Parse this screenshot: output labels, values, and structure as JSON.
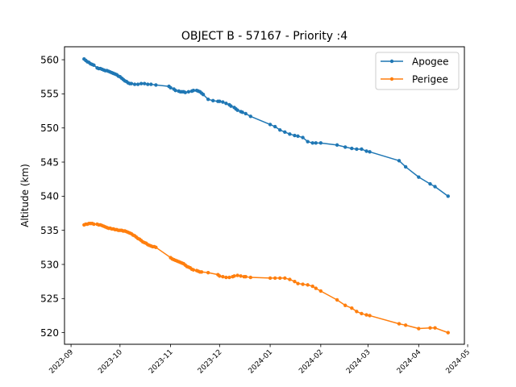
{
  "chart_data": {
    "type": "line",
    "title": "OBJECT B - 57167 - Priority :4",
    "xlabel": "",
    "ylabel": "Altitude (km)",
    "x_type": "date",
    "xlim": [
      "2023-08-28",
      "2024-04-29"
    ],
    "ylim": [
      518.3,
      561.9
    ],
    "y_ticks": [
      520,
      525,
      530,
      535,
      540,
      545,
      550,
      555,
      560
    ],
    "x_ticks": [
      "2023-09",
      "2023-10",
      "2023-11",
      "2023-12",
      "2024-01",
      "2024-02",
      "2024-03",
      "2024-04",
      "2024-05"
    ],
    "grid": false,
    "legend_position": "top-right",
    "series": [
      {
        "name": "Apogee",
        "color": "#1f77b4",
        "marker": "circle",
        "points": [
          [
            "2023-09-09",
            560.1
          ],
          [
            "2023-09-10",
            559.9
          ],
          [
            "2023-09-11",
            559.7
          ],
          [
            "2023-09-12",
            559.6
          ],
          [
            "2023-09-13",
            559.4
          ],
          [
            "2023-09-14",
            559.3
          ],
          [
            "2023-09-15",
            559.2
          ],
          [
            "2023-09-17",
            558.8
          ],
          [
            "2023-09-18",
            558.7
          ],
          [
            "2023-09-19",
            558.7
          ],
          [
            "2023-09-20",
            558.6
          ],
          [
            "2023-09-21",
            558.5
          ],
          [
            "2023-09-22",
            558.4
          ],
          [
            "2023-09-23",
            558.4
          ],
          [
            "2023-09-24",
            558.3
          ],
          [
            "2023-09-25",
            558.2
          ],
          [
            "2023-09-26",
            558.1
          ],
          [
            "2023-09-27",
            558.0
          ],
          [
            "2023-09-28",
            557.9
          ],
          [
            "2023-09-29",
            557.8
          ],
          [
            "2023-09-30",
            557.6
          ],
          [
            "2023-10-01",
            557.5
          ],
          [
            "2023-10-02",
            557.3
          ],
          [
            "2023-10-03",
            557.1
          ],
          [
            "2023-10-04",
            556.9
          ],
          [
            "2023-10-05",
            556.8
          ],
          [
            "2023-10-06",
            556.6
          ],
          [
            "2023-10-07",
            556.5
          ],
          [
            "2023-10-08",
            556.5
          ],
          [
            "2023-10-10",
            556.4
          ],
          [
            "2023-10-12",
            556.4
          ],
          [
            "2023-10-14",
            556.5
          ],
          [
            "2023-10-16",
            556.5
          ],
          [
            "2023-10-18",
            556.4
          ],
          [
            "2023-10-20",
            556.4
          ],
          [
            "2023-10-23",
            556.3
          ],
          [
            "2023-10-31",
            556.1
          ],
          [
            "2023-11-01",
            555.9
          ],
          [
            "2023-11-03",
            555.7
          ],
          [
            "2023-11-04",
            555.5
          ],
          [
            "2023-11-06",
            555.4
          ],
          [
            "2023-11-07",
            555.3
          ],
          [
            "2023-11-08",
            555.3
          ],
          [
            "2023-11-09",
            555.3
          ],
          [
            "2023-11-10",
            555.2
          ],
          [
            "2023-11-12",
            555.3
          ],
          [
            "2023-11-14",
            555.4
          ],
          [
            "2023-11-15",
            555.5
          ],
          [
            "2023-11-17",
            555.5
          ],
          [
            "2023-11-18",
            555.4
          ],
          [
            "2023-11-19",
            555.3
          ],
          [
            "2023-11-20",
            555.1
          ],
          [
            "2023-11-21",
            554.9
          ],
          [
            "2023-11-24",
            554.2
          ],
          [
            "2023-11-27",
            554.0
          ],
          [
            "2023-11-30",
            553.9
          ],
          [
            "2023-12-01",
            553.9
          ],
          [
            "2023-12-03",
            553.8
          ],
          [
            "2023-12-05",
            553.6
          ],
          [
            "2023-12-07",
            553.4
          ],
          [
            "2023-12-08",
            553.2
          ],
          [
            "2023-12-10",
            553.0
          ],
          [
            "2023-12-11",
            552.8
          ],
          [
            "2023-12-12",
            552.6
          ],
          [
            "2023-12-14",
            552.4
          ],
          [
            "2023-12-15",
            552.3
          ],
          [
            "2023-12-17",
            552.1
          ],
          [
            "2023-12-20",
            551.7
          ],
          [
            "2024-01-01",
            550.5
          ],
          [
            "2024-01-04",
            550.2
          ],
          [
            "2024-01-07",
            549.7
          ],
          [
            "2024-01-10",
            549.4
          ],
          [
            "2024-01-13",
            549.1
          ],
          [
            "2024-01-16",
            548.9
          ],
          [
            "2024-01-18",
            548.8
          ],
          [
            "2024-01-21",
            548.6
          ],
          [
            "2024-01-24",
            548.0
          ],
          [
            "2024-01-27",
            547.8
          ],
          [
            "2024-01-29",
            547.8
          ],
          [
            "2024-02-01",
            547.8
          ],
          [
            "2024-02-11",
            547.5
          ],
          [
            "2024-02-16",
            547.2
          ],
          [
            "2024-02-20",
            547.0
          ],
          [
            "2024-02-23",
            546.9
          ],
          [
            "2024-02-26",
            546.9
          ],
          [
            "2024-02-29",
            546.6
          ],
          [
            "2024-03-02",
            546.5
          ],
          [
            "2024-03-20",
            545.2
          ],
          [
            "2024-03-24",
            544.3
          ],
          [
            "2024-04-01",
            542.8
          ],
          [
            "2024-04-08",
            541.8
          ],
          [
            "2024-04-11",
            541.4
          ],
          [
            "2024-04-19",
            540.0
          ]
        ]
      },
      {
        "name": "Perigee",
        "color": "#ff7f0e",
        "marker": "circle",
        "points": [
          [
            "2023-09-09",
            535.8
          ],
          [
            "2023-09-10",
            535.9
          ],
          [
            "2023-09-11",
            535.9
          ],
          [
            "2023-09-12",
            536.0
          ],
          [
            "2023-09-13",
            536.0
          ],
          [
            "2023-09-14",
            536.0
          ],
          [
            "2023-09-15",
            535.9
          ],
          [
            "2023-09-17",
            535.9
          ],
          [
            "2023-09-18",
            535.8
          ],
          [
            "2023-09-19",
            535.8
          ],
          [
            "2023-09-20",
            535.7
          ],
          [
            "2023-09-21",
            535.6
          ],
          [
            "2023-09-22",
            535.5
          ],
          [
            "2023-09-23",
            535.4
          ],
          [
            "2023-09-24",
            535.3
          ],
          [
            "2023-09-25",
            535.3
          ],
          [
            "2023-09-26",
            535.2
          ],
          [
            "2023-09-27",
            535.2
          ],
          [
            "2023-09-28",
            535.1
          ],
          [
            "2023-09-29",
            535.1
          ],
          [
            "2023-09-30",
            535.0
          ],
          [
            "2023-10-01",
            535.0
          ],
          [
            "2023-10-02",
            535.0
          ],
          [
            "2023-10-03",
            534.9
          ],
          [
            "2023-10-04",
            534.9
          ],
          [
            "2023-10-05",
            534.8
          ],
          [
            "2023-10-06",
            534.7
          ],
          [
            "2023-10-07",
            534.6
          ],
          [
            "2023-10-08",
            534.5
          ],
          [
            "2023-10-09",
            534.3
          ],
          [
            "2023-10-10",
            534.2
          ],
          [
            "2023-10-11",
            534.0
          ],
          [
            "2023-10-12",
            533.8
          ],
          [
            "2023-10-13",
            533.7
          ],
          [
            "2023-10-14",
            533.5
          ],
          [
            "2023-10-15",
            533.3
          ],
          [
            "2023-10-16",
            533.2
          ],
          [
            "2023-10-17",
            533.1
          ],
          [
            "2023-10-18",
            532.9
          ],
          [
            "2023-10-19",
            532.8
          ],
          [
            "2023-10-20",
            532.7
          ],
          [
            "2023-10-21",
            532.6
          ],
          [
            "2023-10-22",
            532.6
          ],
          [
            "2023-10-23",
            532.5
          ],
          [
            "2023-11-01",
            531.0
          ],
          [
            "2023-11-02",
            530.8
          ],
          [
            "2023-11-03",
            530.7
          ],
          [
            "2023-11-04",
            530.6
          ],
          [
            "2023-11-05",
            530.5
          ],
          [
            "2023-11-06",
            530.4
          ],
          [
            "2023-11-07",
            530.3
          ],
          [
            "2023-11-08",
            530.2
          ],
          [
            "2023-11-09",
            530.1
          ],
          [
            "2023-11-10",
            529.9
          ],
          [
            "2023-11-11",
            529.7
          ],
          [
            "2023-11-12",
            529.6
          ],
          [
            "2023-11-13",
            529.5
          ],
          [
            "2023-11-14",
            529.3
          ],
          [
            "2023-11-15",
            529.2
          ],
          [
            "2023-11-17",
            529.1
          ],
          [
            "2023-11-18",
            529.0
          ],
          [
            "2023-11-19",
            528.9
          ],
          [
            "2023-11-20",
            528.9
          ],
          [
            "2023-11-24",
            528.8
          ],
          [
            "2023-11-30",
            528.5
          ],
          [
            "2023-12-01",
            528.3
          ],
          [
            "2023-12-03",
            528.2
          ],
          [
            "2023-12-05",
            528.1
          ],
          [
            "2023-12-07",
            528.1
          ],
          [
            "2023-12-09",
            528.2
          ],
          [
            "2023-12-10",
            528.3
          ],
          [
            "2023-12-12",
            528.4
          ],
          [
            "2023-12-14",
            528.3
          ],
          [
            "2023-12-16",
            528.2
          ],
          [
            "2023-12-17",
            528.2
          ],
          [
            "2023-12-20",
            528.1
          ],
          [
            "2024-01-01",
            528.0
          ],
          [
            "2024-01-04",
            528.0
          ],
          [
            "2024-01-07",
            528.0
          ],
          [
            "2024-01-10",
            528.0
          ],
          [
            "2024-01-13",
            527.8
          ],
          [
            "2024-01-16",
            527.5
          ],
          [
            "2024-01-18",
            527.2
          ],
          [
            "2024-01-21",
            527.1
          ],
          [
            "2024-01-24",
            527.0
          ],
          [
            "2024-01-27",
            526.8
          ],
          [
            "2024-01-29",
            526.5
          ],
          [
            "2024-02-01",
            526.1
          ],
          [
            "2024-02-11",
            524.8
          ],
          [
            "2024-02-16",
            524.0
          ],
          [
            "2024-02-20",
            523.6
          ],
          [
            "2024-02-23",
            523.1
          ],
          [
            "2024-02-26",
            522.8
          ],
          [
            "2024-02-29",
            522.6
          ],
          [
            "2024-03-02",
            522.5
          ],
          [
            "2024-03-20",
            521.3
          ],
          [
            "2024-03-24",
            521.1
          ],
          [
            "2024-04-01",
            520.6
          ],
          [
            "2024-04-08",
            520.7
          ],
          [
            "2024-04-11",
            520.7
          ],
          [
            "2024-04-19",
            520.0
          ]
        ]
      }
    ]
  }
}
